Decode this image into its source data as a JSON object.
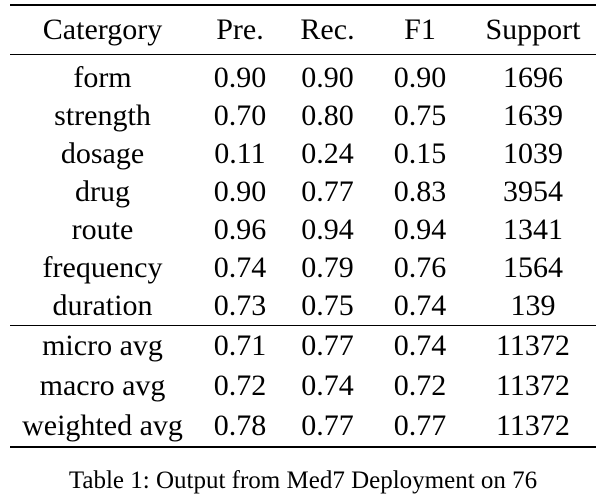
{
  "table": {
    "columns": [
      "Catergory",
      "Pre.",
      "Rec.",
      "F1",
      "Support"
    ],
    "rows": [
      {
        "category": "form",
        "pre": "0.90",
        "rec": "0.90",
        "f1": "0.90",
        "support": "1696"
      },
      {
        "category": "strength",
        "pre": "0.70",
        "rec": "0.80",
        "f1": "0.75",
        "support": "1639"
      },
      {
        "category": "dosage",
        "pre": "0.11",
        "rec": "0.24",
        "f1": "0.15",
        "support": "1039"
      },
      {
        "category": "drug",
        "pre": "0.90",
        "rec": "0.77",
        "f1": "0.83",
        "support": "3954"
      },
      {
        "category": "route",
        "pre": "0.96",
        "rec": "0.94",
        "f1": "0.94",
        "support": "1341"
      },
      {
        "category": "frequency",
        "pre": "0.74",
        "rec": "0.79",
        "f1": "0.76",
        "support": "1564"
      },
      {
        "category": "duration",
        "pre": "0.73",
        "rec": "0.75",
        "f1": "0.74",
        "support": "139"
      }
    ],
    "summary_rows": [
      {
        "category": "micro avg",
        "pre": "0.71",
        "rec": "0.77",
        "f1": "0.74",
        "support": "11372"
      },
      {
        "category": "macro avg",
        "pre": "0.72",
        "rec": "0.74",
        "f1": "0.72",
        "support": "11372"
      },
      {
        "category": "weighted avg",
        "pre": "0.78",
        "rec": "0.77",
        "f1": "0.77",
        "support": "11372"
      }
    ]
  },
  "caption": "Table 1: Output from Med7 Deployment on 76",
  "chart_data": {
    "type": "table",
    "columns": [
      "Catergory",
      "Pre.",
      "Rec.",
      "F1",
      "Support"
    ],
    "rows": [
      [
        "form",
        0.9,
        0.9,
        0.9,
        1696
      ],
      [
        "strength",
        0.7,
        0.8,
        0.75,
        1639
      ],
      [
        "dosage",
        0.11,
        0.24,
        0.15,
        1039
      ],
      [
        "drug",
        0.9,
        0.77,
        0.83,
        3954
      ],
      [
        "route",
        0.96,
        0.94,
        0.94,
        1341
      ],
      [
        "frequency",
        0.74,
        0.79,
        0.76,
        1564
      ],
      [
        "duration",
        0.73,
        0.75,
        0.74,
        139
      ],
      [
        "micro avg",
        0.71,
        0.77,
        0.74,
        11372
      ],
      [
        "macro avg",
        0.72,
        0.74,
        0.72,
        11372
      ],
      [
        "weighted avg",
        0.78,
        0.77,
        0.77,
        11372
      ]
    ]
  },
  "colors": {
    "text": "#000000",
    "rule": "#000000",
    "background": "#ffffff"
  }
}
